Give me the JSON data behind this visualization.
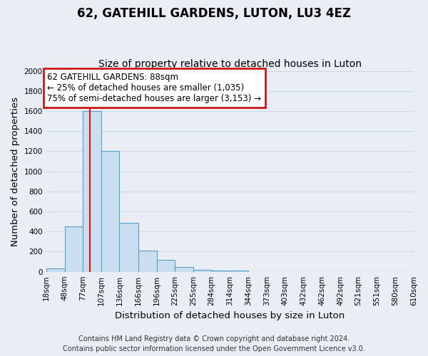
{
  "title": "62, GATEHILL GARDENS, LUTON, LU3 4EZ",
  "subtitle": "Size of property relative to detached houses in Luton",
  "xlabel": "Distribution of detached houses by size in Luton",
  "ylabel": "Number of detached properties",
  "bar_labels": [
    "18sqm",
    "48sqm",
    "77sqm",
    "107sqm",
    "136sqm",
    "166sqm",
    "196sqm",
    "225sqm",
    "255sqm",
    "284sqm",
    "314sqm",
    "344sqm",
    "373sqm",
    "403sqm",
    "432sqm",
    "462sqm",
    "492sqm",
    "521sqm",
    "551sqm",
    "580sqm",
    "610sqm"
  ],
  "bar_values": [
    30,
    450,
    1600,
    1200,
    490,
    210,
    120,
    45,
    20,
    15,
    10,
    0,
    0,
    0,
    0,
    0,
    0,
    0,
    0,
    0,
    0
  ],
  "bar_color": "#c9dff0",
  "bar_edge_color": "#5a9fc8",
  "red_line_x": 88,
  "bin_edges": [
    18,
    48,
    77,
    107,
    136,
    166,
    196,
    225,
    255,
    284,
    314,
    344,
    373,
    403,
    432,
    462,
    492,
    521,
    551,
    580,
    610
  ],
  "ylim": [
    0,
    2000
  ],
  "yticks": [
    0,
    200,
    400,
    600,
    800,
    1000,
    1200,
    1400,
    1600,
    1800,
    2000
  ],
  "annotation_title": "62 GATEHILL GARDENS: 88sqm",
  "annotation_line1": "← 25% of detached houses are smaller (1,035)",
  "annotation_line2": "75% of semi-detached houses are larger (3,153) →",
  "annotation_box_color": "#ffffff",
  "annotation_box_edge_color": "#cc0000",
  "footer_line1": "Contains HM Land Registry data © Crown copyright and database right 2024.",
  "footer_line2": "Contains public sector information licensed under the Open Government Licence v3.0.",
  "background_color": "#e8eef4",
  "grid_color": "#d0dae4",
  "title_fontsize": 12,
  "subtitle_fontsize": 10,
  "axis_label_fontsize": 9.5,
  "tick_fontsize": 7.5,
  "annotation_fontsize": 8.5,
  "footer_fontsize": 7
}
